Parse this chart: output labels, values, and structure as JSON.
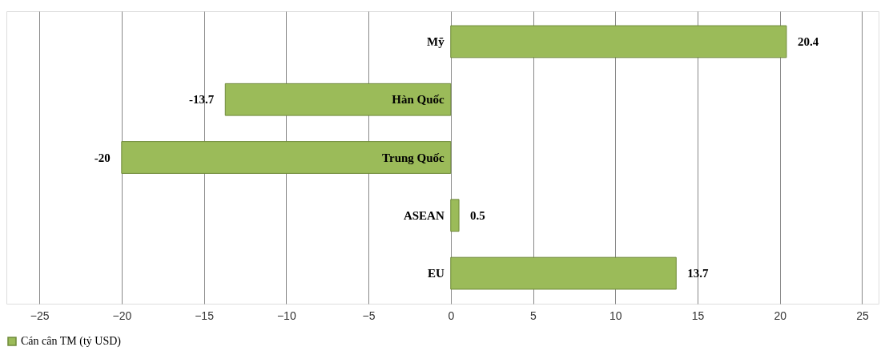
{
  "chart_data": {
    "type": "bar",
    "orientation": "horizontal",
    "categories": [
      "Mỹ",
      "Hàn Quốc",
      "Trung Quốc",
      "ASEAN",
      "EU"
    ],
    "series": [
      {
        "name": "Cán cân TM (tỷ USD)",
        "color": "#9bbb59",
        "values": [
          20.4,
          -13.7,
          -20,
          0.5,
          13.7
        ]
      }
    ],
    "xlim": [
      -27,
      26
    ],
    "xticks": [
      -25,
      -20,
      -15,
      -10,
      -5,
      0,
      5,
      10,
      15,
      20,
      25
    ],
    "grid": "x",
    "legend": "bottom",
    "data_labels": true
  }
}
